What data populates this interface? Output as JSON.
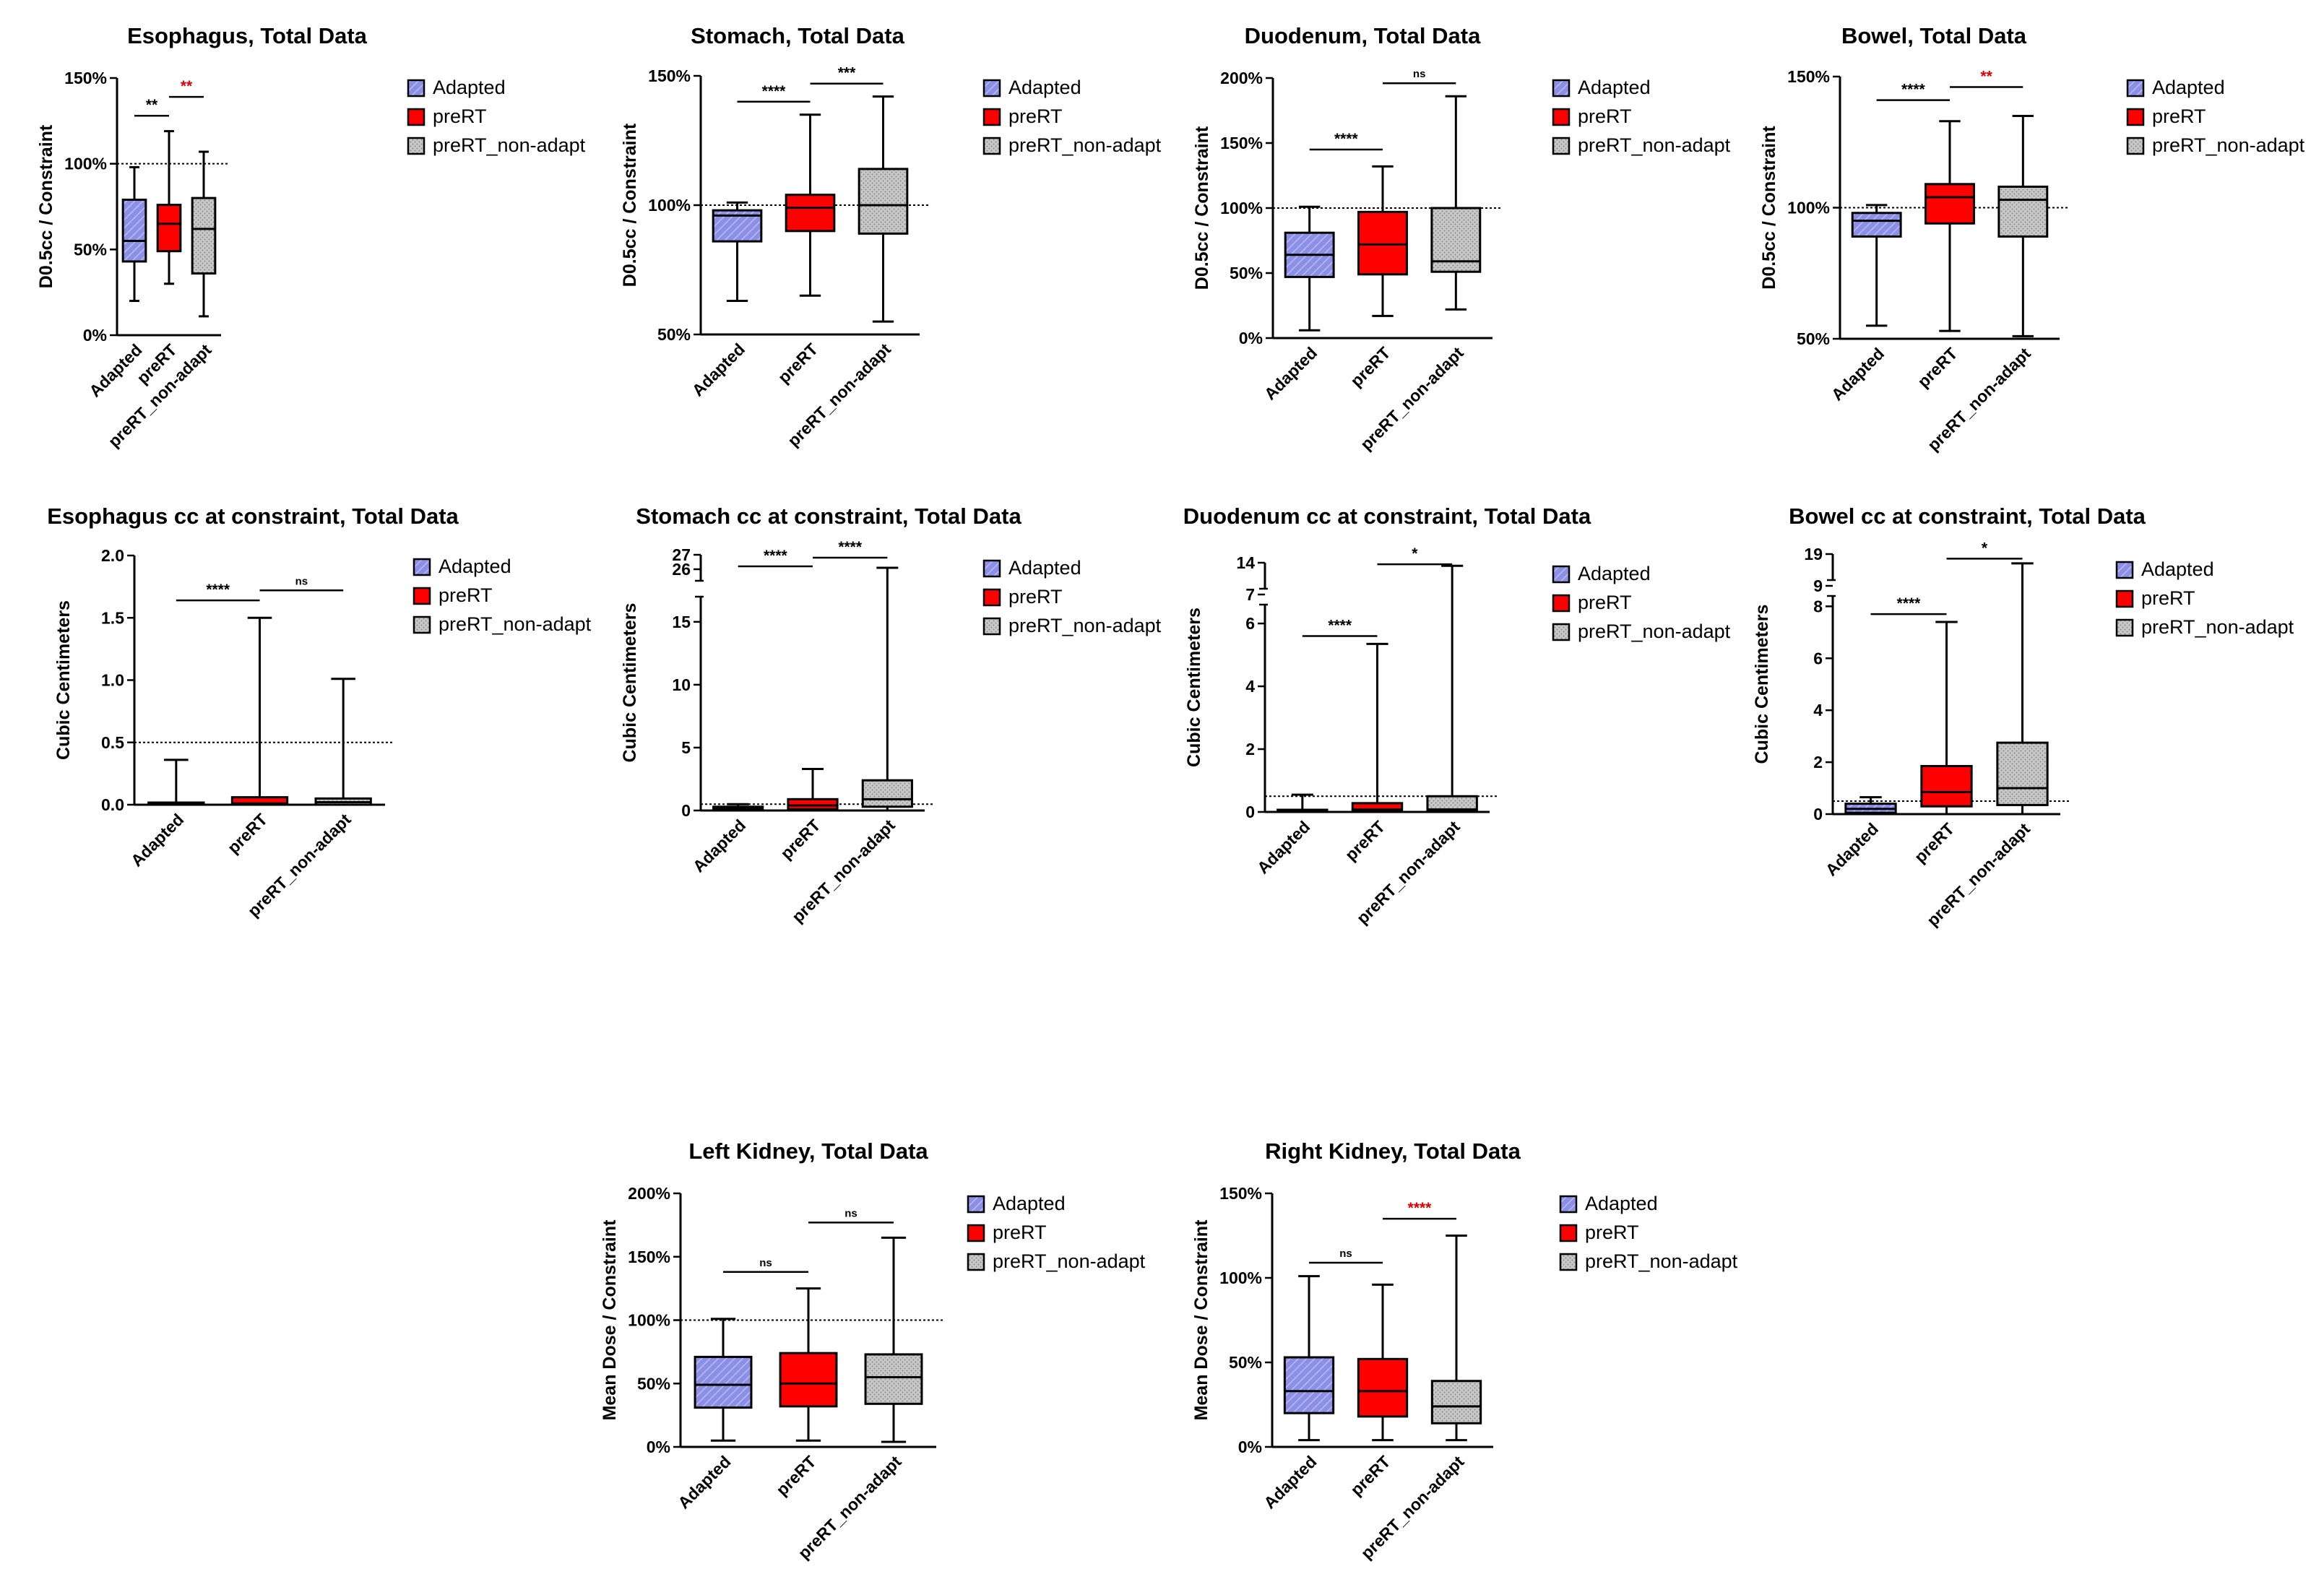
{
  "colors": {
    "adapted_fill": "#8c8fe6",
    "prert_fill": "#ff0000",
    "nonadapt_fill": "#c8c8c8",
    "significance_red": "#e00000",
    "significance_black": "#000000"
  },
  "legend_labels": [
    "Adapted",
    "preRT",
    "preRT_non-adapt"
  ],
  "chart_data": [
    {
      "type": "box",
      "title": "Esophagus, Total Data",
      "ylabel": "D0.5cc / Constraint",
      "categories": [
        "Adapted",
        "preRT",
        "preRT_non-adapt"
      ],
      "ylim": [
        0,
        150
      ],
      "yticks": [
        0,
        50,
        100,
        150
      ],
      "ytick_labels": [
        "0%",
        "50%",
        "100%",
        "150%"
      ],
      "reference_line": 100,
      "legend": "right",
      "boxes": [
        {
          "min": 20,
          "q1": 43,
          "median": 55,
          "q3": 79,
          "max": 98
        },
        {
          "min": 30,
          "q1": 49,
          "median": 65,
          "q3": 76,
          "max": 119
        },
        {
          "min": 11,
          "q1": 36,
          "median": 62,
          "q3": 80,
          "max": 107
        }
      ],
      "significance": [
        {
          "from": 0,
          "to": 1,
          "label": "**",
          "y": 128,
          "red": false
        },
        {
          "from": 1,
          "to": 2,
          "label": "**",
          "y": 139,
          "red": true
        }
      ]
    },
    {
      "type": "box",
      "title": "Stomach, Total Data",
      "ylabel": "D0.5cc / Constraint",
      "categories": [
        "Adapted",
        "preRT",
        "preRT_non-adapt"
      ],
      "ylim": [
        50,
        150
      ],
      "yticks": [
        50,
        100,
        150
      ],
      "ytick_labels": [
        "50%",
        "100%",
        "150%"
      ],
      "reference_line": 100,
      "legend": "right",
      "boxes": [
        {
          "min": 63,
          "q1": 86,
          "median": 96,
          "q3": 98,
          "max": 101
        },
        {
          "min": 65,
          "q1": 90,
          "median": 99,
          "q3": 104,
          "max": 135
        },
        {
          "min": 55,
          "q1": 89,
          "median": 100,
          "q3": 114,
          "max": 142
        }
      ],
      "significance": [
        {
          "from": 0,
          "to": 1,
          "label": "****",
          "y": 140,
          "red": false
        },
        {
          "from": 1,
          "to": 2,
          "label": "***",
          "y": 147,
          "red": false
        }
      ]
    },
    {
      "type": "box",
      "title": "Duodenum, Total Data",
      "ylabel": "D0.5cc / Constraint",
      "categories": [
        "Adapted",
        "preRT",
        "preRT_non-adapt"
      ],
      "ylim": [
        0,
        200
      ],
      "yticks": [
        0,
        50,
        100,
        150,
        200
      ],
      "ytick_labels": [
        "0%",
        "50%",
        "100%",
        "150%",
        "200%"
      ],
      "reference_line": 100,
      "legend": "right",
      "boxes": [
        {
          "min": 6,
          "q1": 47,
          "median": 64,
          "q3": 81,
          "max": 101
        },
        {
          "min": 17,
          "q1": 49,
          "median": 72,
          "q3": 97,
          "max": 132
        },
        {
          "min": 22,
          "q1": 51,
          "median": 59,
          "q3": 100,
          "max": 186
        }
      ],
      "significance": [
        {
          "from": 0,
          "to": 1,
          "label": "****",
          "y": 145,
          "red": false
        },
        {
          "from": 1,
          "to": 2,
          "label": "ns",
          "y": 196,
          "red": false
        }
      ]
    },
    {
      "type": "box",
      "title": "Bowel, Total Data",
      "ylabel": "D0.5cc / Constraint",
      "categories": [
        "Adapted",
        "preRT",
        "preRT_non-adapt"
      ],
      "ylim": [
        50,
        150
      ],
      "yticks": [
        50,
        100,
        150
      ],
      "ytick_labels": [
        "50%",
        "100%",
        "150%"
      ],
      "reference_line": 100,
      "legend": "right",
      "boxes": [
        {
          "min": 55,
          "q1": 89,
          "median": 95,
          "q3": 98,
          "max": 101
        },
        {
          "min": 53,
          "q1": 94,
          "median": 104,
          "q3": 109,
          "max": 133
        },
        {
          "min": 51,
          "q1": 89,
          "median": 103,
          "q3": 108,
          "max": 135
        }
      ],
      "significance": [
        {
          "from": 0,
          "to": 1,
          "label": "****",
          "y": 141,
          "red": false
        },
        {
          "from": 1,
          "to": 2,
          "label": "**",
          "y": 146,
          "red": true
        }
      ]
    },
    {
      "type": "box",
      "title": "Esophagus cc at constraint, Total Data",
      "ylabel": "Cubic Centimeters",
      "categories": [
        "Adapted",
        "preRT",
        "preRT_non-adapt"
      ],
      "ylim": [
        0,
        2.0
      ],
      "yticks": [
        0,
        0.5,
        1.0,
        1.5,
        2.0
      ],
      "ytick_labels": [
        "0.0",
        "0.5",
        "1.0",
        "1.5",
        "2.0"
      ],
      "reference_line": 0.5,
      "legend": "right",
      "boxes": [
        {
          "min": 0,
          "q1": 0,
          "median": 0,
          "q3": 0.01,
          "max": 0.36
        },
        {
          "min": 0,
          "q1": 0,
          "median": 0.01,
          "q3": 0.06,
          "max": 1.5
        },
        {
          "min": 0,
          "q1": 0,
          "median": 0.02,
          "q3": 0.05,
          "max": 1.01
        }
      ],
      "significance": [
        {
          "from": 0,
          "to": 1,
          "label": "****",
          "y": 1.64,
          "red": false
        },
        {
          "from": 1,
          "to": 2,
          "label": "ns",
          "y": 1.72,
          "red": false
        }
      ]
    },
    {
      "type": "box",
      "title": "Stomach cc at constraint, Total Data",
      "ylabel": "Cubic Centimeters",
      "categories": [
        "Adapted",
        "preRT",
        "preRT_non-adapt"
      ],
      "ylim": [
        0,
        27
      ],
      "axis_break": [
        17,
        25.5
      ],
      "yticks": [
        0,
        5,
        10,
        15,
        26,
        27
      ],
      "ytick_labels": [
        "0",
        "5",
        "10",
        "15",
        "26",
        "27"
      ],
      "reference_line": 0.5,
      "legend": "right",
      "boxes": [
        {
          "min": 0,
          "q1": 0.05,
          "median": 0.15,
          "q3": 0.3,
          "max": 0.5
        },
        {
          "min": 0,
          "q1": 0.1,
          "median": 0.4,
          "q3": 0.9,
          "max": 3.3
        },
        {
          "min": 0,
          "q1": 0.3,
          "median": 0.9,
          "q3": 2.4,
          "max": 26.1
        }
      ],
      "significance": [
        {
          "from": 0,
          "to": 1,
          "label": "****",
          "y": 26.2,
          "red": false
        },
        {
          "from": 1,
          "to": 2,
          "label": "****",
          "y": 26.8,
          "red": false
        }
      ]
    },
    {
      "type": "box",
      "title": "Duodenum cc at constraint, Total Data",
      "ylabel": "Cubic Centimeters",
      "categories": [
        "Adapted",
        "preRT",
        "preRT_non-adapt"
      ],
      "ylim": [
        0,
        14
      ],
      "axis_break": [
        6.6,
        13.3
      ],
      "yticks": [
        0,
        2,
        4,
        6,
        7,
        14
      ],
      "ytick_labels": [
        "0",
        "2",
        "4",
        "6",
        "7",
        "14"
      ],
      "reference_line": 0.5,
      "legend": "right",
      "boxes": [
        {
          "min": 0,
          "q1": 0,
          "median": 0.02,
          "q3": 0.05,
          "max": 0.55
        },
        {
          "min": 0,
          "q1": 0.02,
          "median": 0.08,
          "q3": 0.28,
          "max": 5.35
        },
        {
          "min": 0,
          "q1": 0.02,
          "median": 0.08,
          "q3": 0.5,
          "max": 13.9
        }
      ],
      "significance": [
        {
          "from": 0,
          "to": 1,
          "label": "****",
          "y": 5.6,
          "red": false
        },
        {
          "from": 1,
          "to": 2,
          "label": "*",
          "y": 13.95,
          "red": false
        }
      ]
    },
    {
      "type": "box",
      "title": "Bowel cc at constraint, Total  Data",
      "ylabel": "Cubic Centimeters",
      "categories": [
        "Adapted",
        "preRT",
        "preRT_non-adapt"
      ],
      "ylim": [
        0,
        19
      ],
      "axis_break": [
        8.4,
        18.3
      ],
      "yticks": [
        0,
        2,
        4,
        6,
        8,
        9,
        19
      ],
      "ytick_labels": [
        "0",
        "2",
        "4",
        "6",
        "8",
        "9",
        "19"
      ],
      "reference_line": 0.5,
      "legend": "right",
      "boxes": [
        {
          "min": 0,
          "q1": 0.05,
          "median": 0.2,
          "q3": 0.4,
          "max": 0.65
        },
        {
          "min": 0,
          "q1": 0.3,
          "median": 0.85,
          "q3": 1.85,
          "max": 7.4
        },
        {
          "min": 0,
          "q1": 0.35,
          "median": 1.0,
          "q3": 2.75,
          "max": 18.7
        }
      ],
      "significance": [
        {
          "from": 0,
          "to": 1,
          "label": "****",
          "y": 7.7,
          "red": false
        },
        {
          "from": 1,
          "to": 2,
          "label": "*",
          "y": 18.85,
          "red": false
        }
      ]
    },
    {
      "type": "box",
      "title": "Left Kidney, Total Data",
      "ylabel": "Mean Dose / Constraint",
      "categories": [
        "Adapted",
        "preRT",
        "preRT_non-adapt"
      ],
      "ylim": [
        0,
        200
      ],
      "yticks": [
        0,
        50,
        100,
        150,
        200
      ],
      "ytick_labels": [
        "0%",
        "50%",
        "100%",
        "150%",
        "200%"
      ],
      "reference_line": 100,
      "legend": "right",
      "boxes": [
        {
          "min": 5,
          "q1": 31,
          "median": 49,
          "q3": 71,
          "max": 101
        },
        {
          "min": 5,
          "q1": 32,
          "median": 50,
          "q3": 74,
          "max": 125
        },
        {
          "min": 4,
          "q1": 34,
          "median": 55,
          "q3": 73,
          "max": 165
        }
      ],
      "significance": [
        {
          "from": 0,
          "to": 1,
          "label": "ns",
          "y": 138,
          "red": false
        },
        {
          "from": 1,
          "to": 2,
          "label": "ns",
          "y": 177,
          "red": false
        }
      ]
    },
    {
      "type": "box",
      "title": "Right Kidney, Total Data",
      "ylabel": "Mean Dose / Constraint",
      "categories": [
        "Adapted",
        "preRT",
        "preRT_non-adapt"
      ],
      "ylim": [
        0,
        150
      ],
      "yticks": [
        0,
        50,
        100,
        150
      ],
      "ytick_labels": [
        "0%",
        "50%",
        "100%",
        "150%"
      ],
      "reference_line": null,
      "legend": "right",
      "boxes": [
        {
          "min": 4,
          "q1": 20,
          "median": 33,
          "q3": 53,
          "max": 101
        },
        {
          "min": 4,
          "q1": 18,
          "median": 33,
          "q3": 52,
          "max": 96
        },
        {
          "min": 4,
          "q1": 14,
          "median": 24,
          "q3": 39,
          "max": 125
        }
      ],
      "significance": [
        {
          "from": 0,
          "to": 1,
          "label": "ns",
          "y": 109,
          "red": false
        },
        {
          "from": 1,
          "to": 2,
          "label": "****",
          "y": 135,
          "red": true
        }
      ]
    }
  ]
}
